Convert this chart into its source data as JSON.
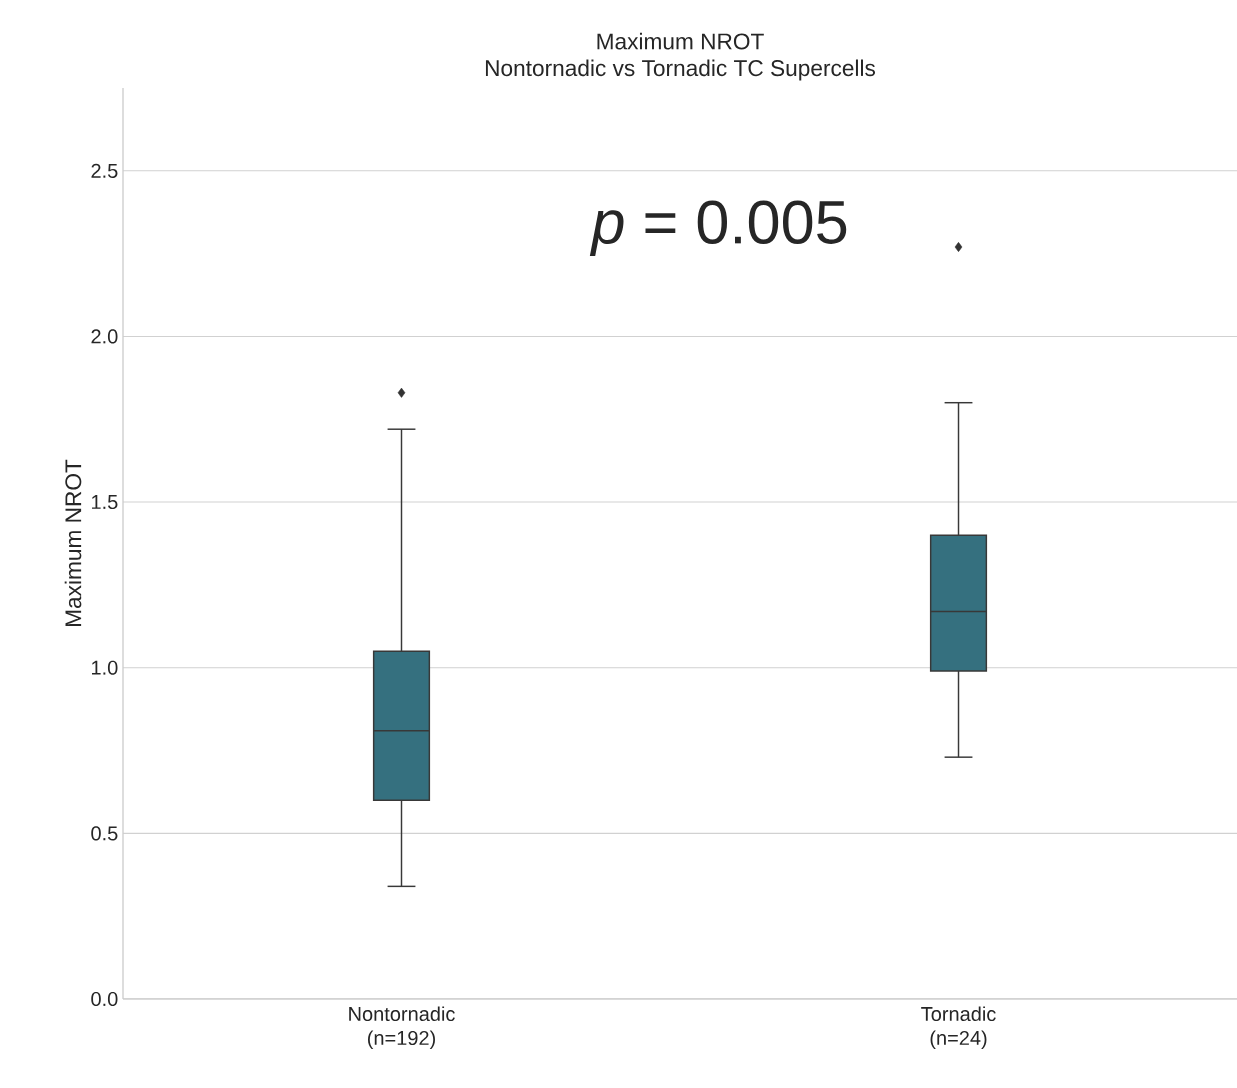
{
  "chart_data": {
    "type": "box",
    "title": "Maximum NROT",
    "subtitle": "Nontornadic vs Tornadic TC Supercells",
    "ylabel": "Maximum NROT",
    "categories": [
      "Nontornadic (n=192)",
      "Tornadic (n=24)"
    ],
    "color": "#35707f",
    "boxes": [
      {
        "low": 0.34,
        "q1": 0.6,
        "median": 0.81,
        "q3": 1.05,
        "high": 1.72,
        "outliers": [
          1.83
        ]
      },
      {
        "low": 0.73,
        "q1": 0.99,
        "median": 1.17,
        "q3": 1.4,
        "high": 1.8,
        "outliers": [
          2.27
        ]
      }
    ],
    "ylim": [
      0,
      2.75
    ],
    "yticks": [
      {
        "value": 0,
        "label": "0.0"
      },
      0.5,
      {
        "value": 1,
        "label": "1.0"
      },
      1.5,
      {
        "value": 2,
        "label": "2.0"
      },
      2.5
    ],
    "grid": "y",
    "annotations": [
      "*p* = 0.005"
    ]
  }
}
